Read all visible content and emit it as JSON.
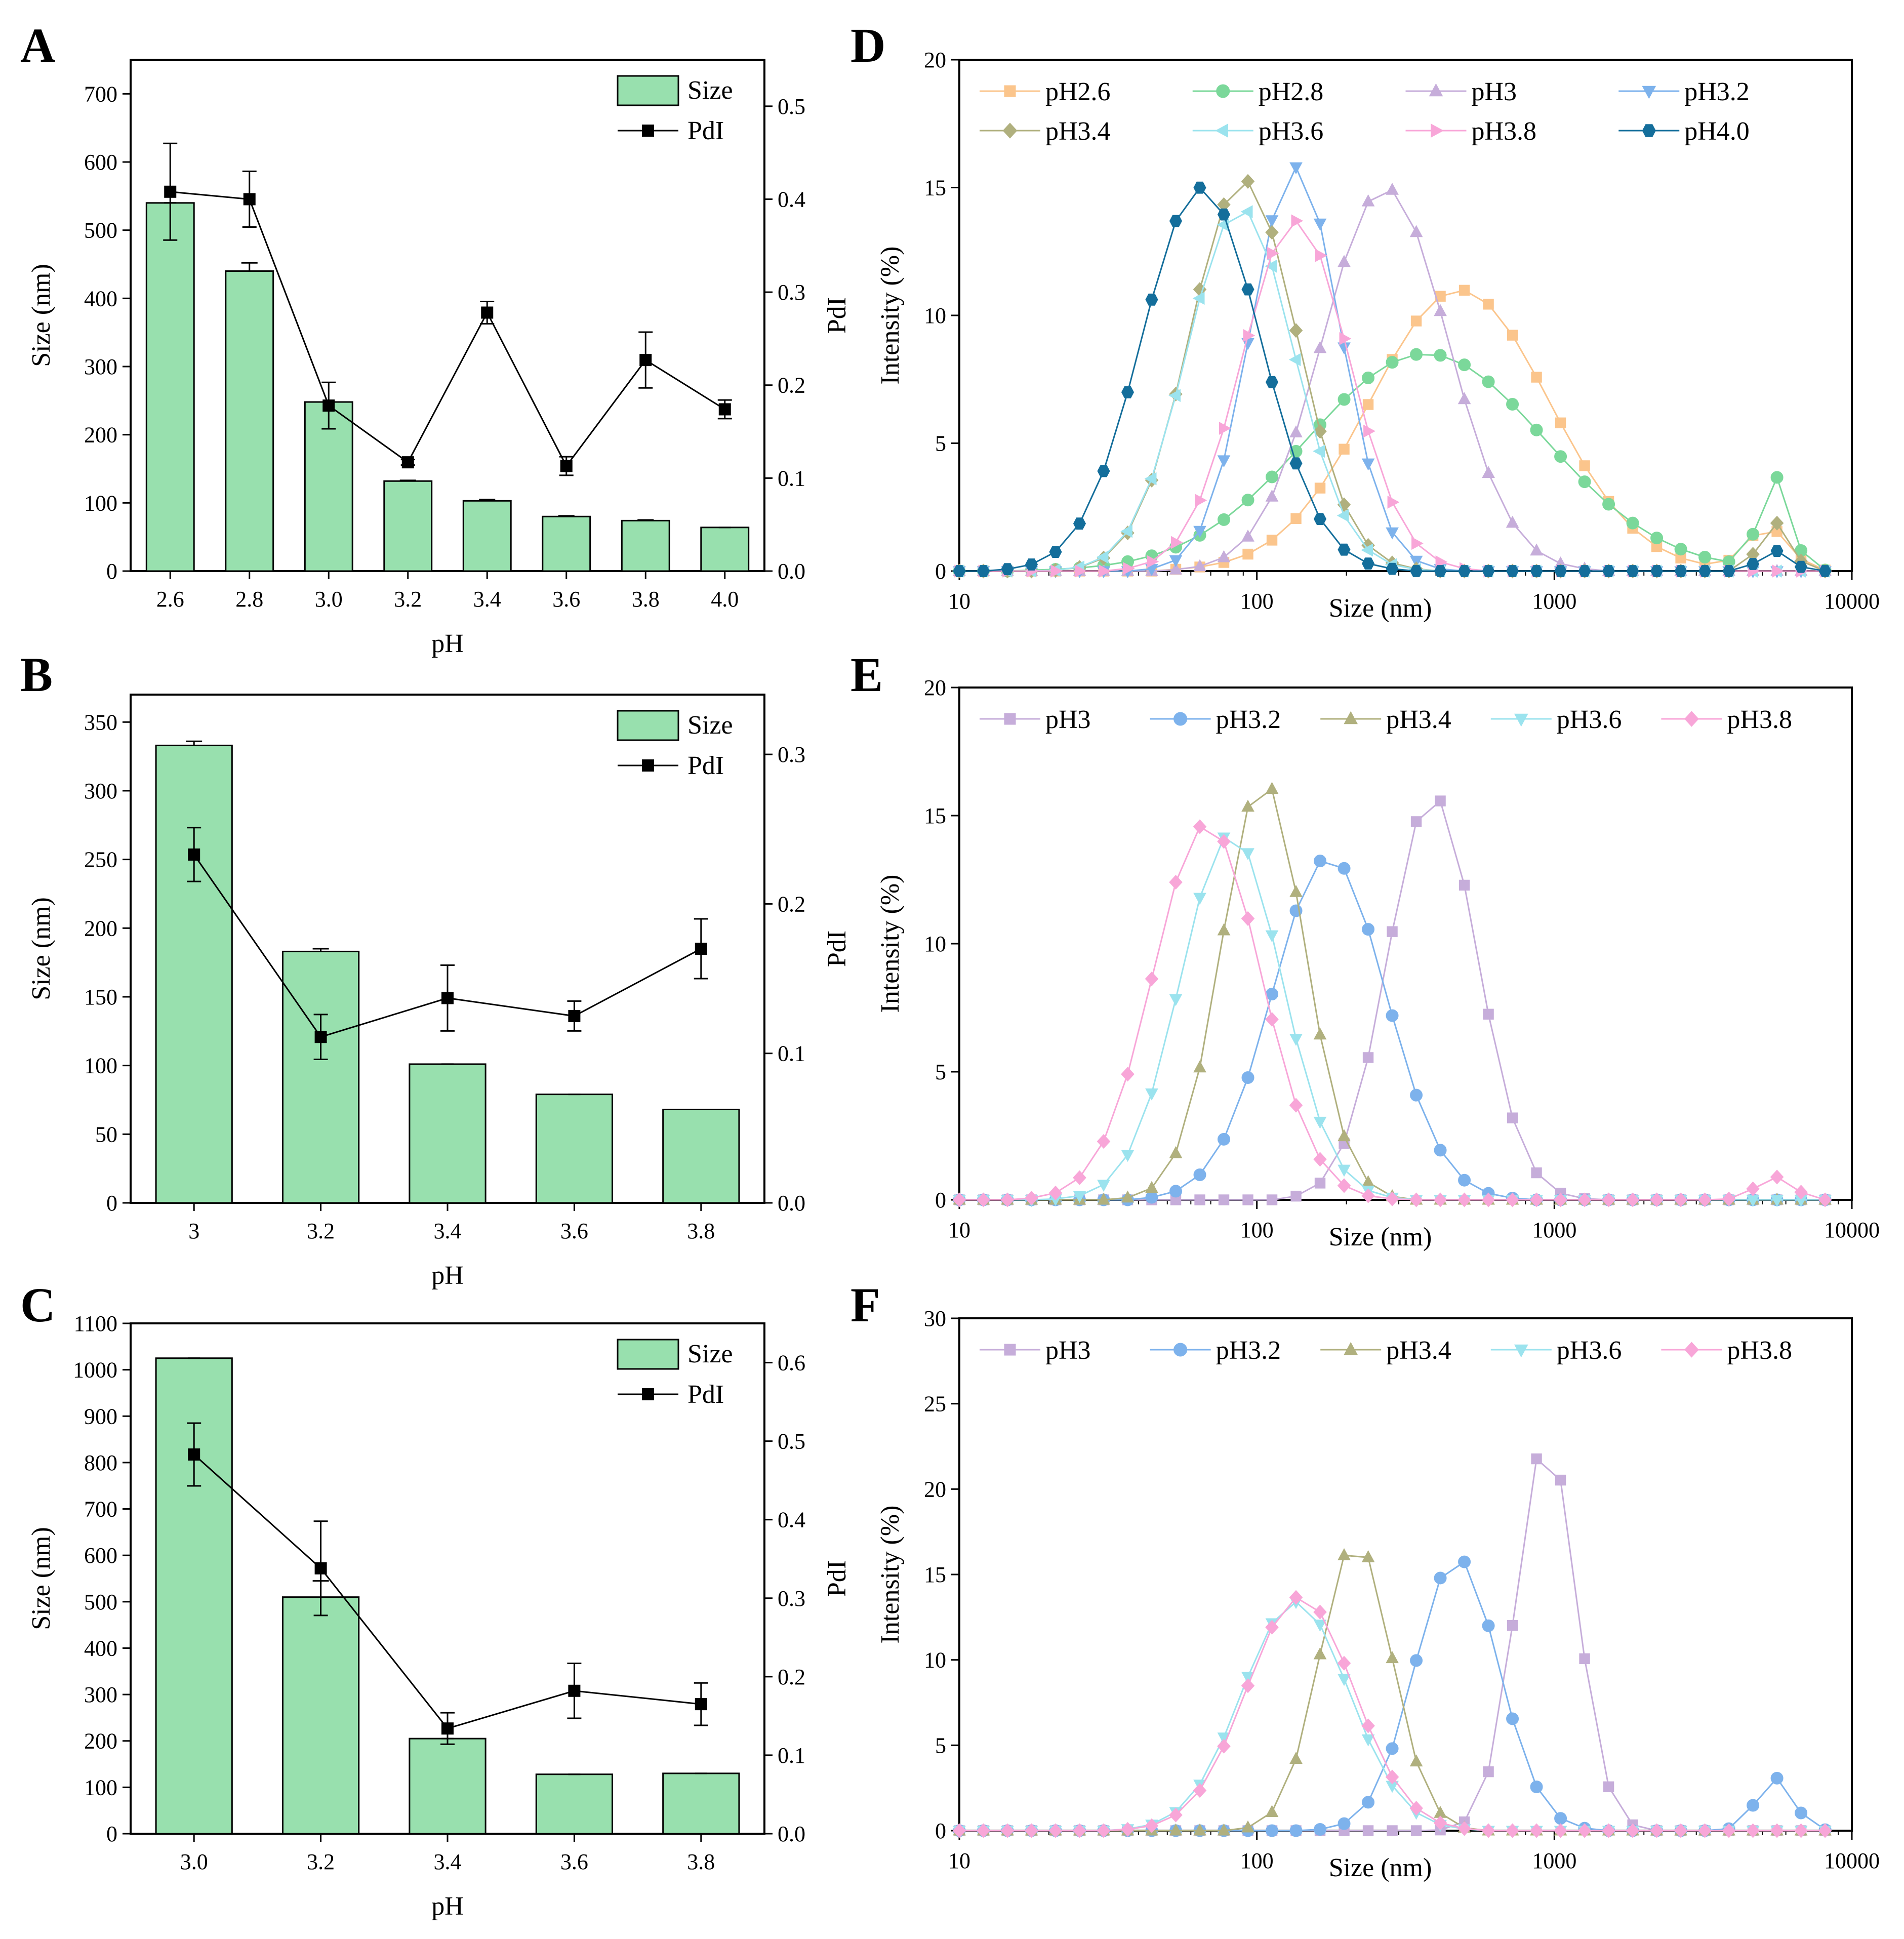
{
  "figure": {
    "panel_labels": [
      "A",
      "B",
      "C",
      "D",
      "E",
      "F"
    ]
  },
  "colors": {
    "bar_fill": "#98E0AE",
    "bar_stroke": "#000000",
    "pdi_line": "#000000",
    "pH2.6": "#FBC58C",
    "pH2.8": "#7BD89A",
    "pH3": "#C6ADDA",
    "pH3.2": "#7DB2EC",
    "pH3.4": "#B0B07E",
    "pH3.6": "#9BE3EE",
    "pH3.8": "#F8A6D8",
    "pH4.0": "#146E9B"
  },
  "chart_data": [
    {
      "id": "A",
      "type": "bar",
      "title": "",
      "xlabel": "pH",
      "ylabel": "Size (nm)",
      "y2label": "PdI",
      "categories": [
        "2.6",
        "2.8",
        "3.0",
        "3.2",
        "3.4",
        "3.6",
        "3.8",
        "4.0"
      ],
      "series": [
        {
          "name": "Size",
          "type": "bar",
          "axis": "left",
          "values": [
            540,
            440,
            248,
            132,
            103,
            80,
            74,
            64
          ],
          "errors": [
            0,
            12,
            0,
            1,
            2,
            1,
            1,
            0
          ]
        },
        {
          "name": "PdI",
          "type": "line",
          "axis": "right",
          "values": [
            0.408,
            0.4,
            0.178,
            0.117,
            0.278,
            0.113,
            0.227,
            0.174
          ],
          "errors": [
            0.052,
            0.03,
            0.025,
            0.003,
            0.012,
            0.01,
            0.03,
            0.01
          ]
        }
      ],
      "ylim": [
        0,
        750
      ],
      "yticks": [
        0,
        100,
        200,
        300,
        400,
        500,
        600,
        700
      ],
      "y2lim": [
        0,
        0.55
      ],
      "y2ticks": [
        "0.0",
        "0.1",
        "0.2",
        "0.3",
        "0.4",
        "0.5"
      ],
      "legend": {
        "position": "top-right",
        "entries": [
          "Size",
          "PdI"
        ]
      }
    },
    {
      "id": "B",
      "type": "bar",
      "title": "",
      "xlabel": "pH",
      "ylabel": "Size (nm)",
      "y2label": "PdI",
      "categories": [
        "3",
        "3.2",
        "3.4",
        "3.6",
        "3.8"
      ],
      "series": [
        {
          "name": "Size",
          "type": "bar",
          "axis": "left",
          "values": [
            333,
            183,
            101,
            79,
            68
          ],
          "errors": [
            3,
            2,
            0,
            0,
            0
          ]
        },
        {
          "name": "PdI",
          "type": "line",
          "axis": "right",
          "values": [
            0.233,
            0.111,
            0.137,
            0.125,
            0.17
          ],
          "errors": [
            0.018,
            0.015,
            0.022,
            0.01,
            0.02
          ]
        }
      ],
      "ylim": [
        0,
        370
      ],
      "yticks": [
        0,
        50,
        100,
        150,
        200,
        250,
        300,
        350
      ],
      "y2lim": [
        0,
        0.34
      ],
      "y2ticks": [
        "0.0",
        "0.1",
        "0.2",
        "0.3"
      ],
      "legend": {
        "position": "top-right",
        "entries": [
          "Size",
          "PdI"
        ]
      }
    },
    {
      "id": "C",
      "type": "bar",
      "title": "",
      "xlabel": "pH",
      "ylabel": "Size (nm)",
      "y2label": "PdI",
      "categories": [
        "3.0",
        "3.2",
        "3.4",
        "3.6",
        "3.8"
      ],
      "series": [
        {
          "name": "Size",
          "type": "bar",
          "axis": "left",
          "values": [
            1025,
            510,
            205,
            128,
            130
          ],
          "errors": [
            0,
            35,
            0,
            0,
            0
          ]
        },
        {
          "name": "PdI",
          "type": "line",
          "axis": "right",
          "values": [
            0.483,
            0.338,
            0.134,
            0.182,
            0.165
          ],
          "errors": [
            0.04,
            0.06,
            0.02,
            0.035,
            0.027
          ]
        }
      ],
      "ylim": [
        0,
        1100
      ],
      "yticks": [
        0,
        100,
        200,
        300,
        400,
        500,
        600,
        700,
        800,
        900,
        1000,
        1100
      ],
      "y2lim": [
        0,
        0.65
      ],
      "y2ticks": [
        "0.0",
        "0.1",
        "0.2",
        "0.3",
        "0.4",
        "0.5",
        "0.6"
      ],
      "legend": {
        "position": "top-right",
        "entries": [
          "Size",
          "PdI"
        ]
      }
    },
    {
      "id": "D",
      "type": "line",
      "title": "",
      "xlabel": "Size (nm)",
      "ylabel": "Intensity (%)",
      "xscale": "log",
      "xlim": [
        10,
        10000
      ],
      "ylim": [
        0,
        20
      ],
      "xticks": [
        "10",
        "100",
        "1000",
        "10000"
      ],
      "yticks": [
        "0",
        "5",
        "10",
        "15",
        "20"
      ],
      "legend": {
        "position": "top",
        "columns": 4
      },
      "series": [
        {
          "name": "pH2.6",
          "marker": "square",
          "peaks": [
            [
              480,
              11.0,
              0.3
            ],
            [
              5200,
              1.7,
              0.07
            ]
          ]
        },
        {
          "name": "pH2.8",
          "marker": "circle",
          "peaks": [
            [
              370,
              8.5,
              0.4
            ],
            [
              5500,
              3.6,
              0.05
            ]
          ]
        },
        {
          "name": "pH3",
          "marker": "triangle-up",
          "peaks": [
            [
              270,
              15.0,
              0.21
            ]
          ]
        },
        {
          "name": "pH3.2",
          "marker": "triangle-down",
          "peaks": [
            [
              135,
              15.8,
              0.15
            ]
          ]
        },
        {
          "name": "pH3.4",
          "marker": "diamond",
          "peaks": [
            [
              90,
              15.3,
              0.18
            ],
            [
              5500,
              1.9,
              0.05
            ]
          ]
        },
        {
          "name": "pH3.6",
          "marker": "triangle-left",
          "peaks": [
            [
              88,
              14.2,
              0.18
            ]
          ]
        },
        {
          "name": "pH3.8",
          "marker": "triangle-right",
          "peaks": [
            [
              135,
              13.7,
              0.18
            ]
          ]
        },
        {
          "name": "pH4.0",
          "marker": "hexagon",
          "peaks": [
            [
              65,
              15.0,
              0.2
            ],
            [
              5500,
              0.8,
              0.05
            ]
          ]
        }
      ]
    },
    {
      "id": "E",
      "type": "line",
      "title": "",
      "xlabel": "Size (nm)",
      "ylabel": "Intensity (%)",
      "xscale": "log",
      "xlim": [
        10,
        10000
      ],
      "ylim": [
        0,
        20
      ],
      "xticks": [
        "10",
        "100",
        "1000",
        "10000"
      ],
      "yticks": [
        "0",
        "5",
        "10",
        "15",
        "20"
      ],
      "legend": {
        "position": "top",
        "columns": 5
      },
      "series": [
        {
          "name": "pH3",
          "marker": "square",
          "peaks": [
            [
              390,
              15.8,
              0.15
            ]
          ]
        },
        {
          "name": "pH3.2",
          "marker": "circle",
          "peaks": [
            [
              175,
              13.4,
              0.19
            ]
          ]
        },
        {
          "name": "pH3.4",
          "marker": "triangle-up",
          "peaks": [
            [
              105,
              16.4,
              0.14
            ]
          ]
        },
        {
          "name": "pH3.6",
          "marker": "triangle-down",
          "peaks": [
            [
              82,
              14.3,
              0.17
            ]
          ]
        },
        {
          "name": "pH3.8",
          "marker": "diamond",
          "peaks": [
            [
              68,
              14.7,
              0.18
            ],
            [
              5500,
              0.9,
              0.06
            ]
          ]
        }
      ]
    },
    {
      "id": "F",
      "type": "line",
      "title": "",
      "xlabel": "Size (nm)",
      "ylabel": "Intensity (%)",
      "xscale": "log",
      "xlim": [
        10,
        10000
      ],
      "ylim": [
        0,
        30
      ],
      "xticks": [
        "10",
        "100",
        "1000",
        "10000"
      ],
      "yticks": [
        "0",
        "5",
        "10",
        "15",
        "20",
        "25",
        "30"
      ],
      "legend": {
        "position": "top",
        "columns": 5
      },
      "series": [
        {
          "name": "pH3",
          "marker": "square",
          "peaks": [
            [
              940,
              23.0,
              0.1
            ]
          ]
        },
        {
          "name": "pH3.2",
          "marker": "circle",
          "peaks": [
            [
              470,
              16.0,
              0.14
            ],
            [
              5500,
              3.1,
              0.06
            ]
          ]
        },
        {
          "name": "pH3.4",
          "marker": "triangle-up",
          "peaks": [
            [
              215,
              17.0,
              0.12
            ]
          ]
        },
        {
          "name": "pH3.6",
          "marker": "triangle-down",
          "peaks": [
            [
              135,
              13.4,
              0.18
            ]
          ]
        },
        {
          "name": "pH3.8",
          "marker": "diamond",
          "peaks": [
            [
              140,
              13.7,
              0.18
            ]
          ]
        }
      ]
    }
  ]
}
